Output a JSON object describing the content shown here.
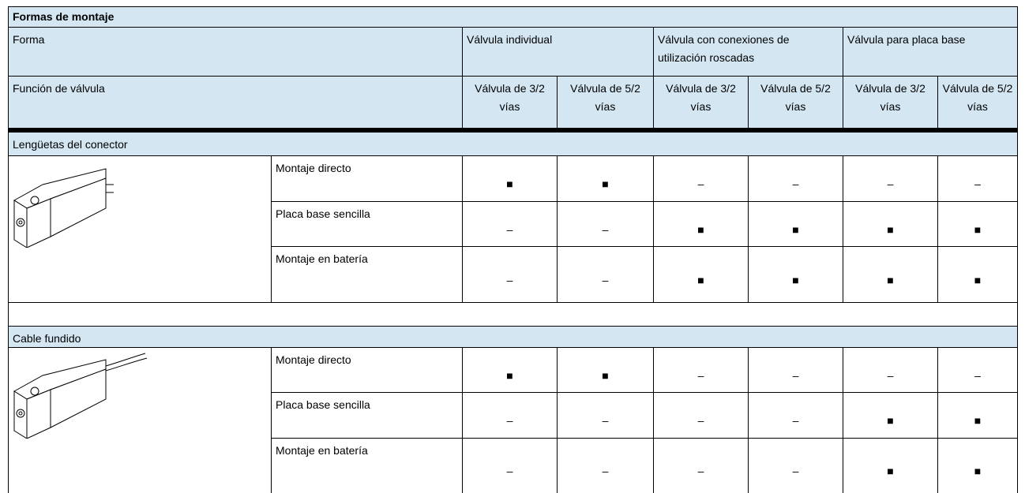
{
  "title": "Formas de montaje",
  "header": {
    "forma_label": "Forma",
    "groups": [
      "Válvula individual",
      "Válvula con conexiones de utilización roscadas",
      "Válvula para placa base"
    ],
    "funcion_label": "Función de válvula",
    "functions": [
      "Válvula de 3/2 vías",
      "Válvula de 5/2 vías",
      "Válvula de 3/2 vías",
      "Válvula de 5/2 vías",
      "Válvula de 3/2 vías",
      "Válvula de 5/2 vías"
    ]
  },
  "sections": [
    {
      "title": "Lengüetas del conector",
      "rows": [
        {
          "label": "Montaje directo",
          "cells": [
            "■",
            "■",
            "–",
            "–",
            "–",
            "–"
          ]
        },
        {
          "label": "Placa base sencilla",
          "cells": [
            "–",
            "–",
            "■",
            "■",
            "■",
            "■"
          ]
        },
        {
          "label": "Montaje en batería",
          "cells": [
            "–",
            "–",
            "■",
            "■",
            "■",
            "■"
          ]
        }
      ]
    },
    {
      "title": "Cable fundido",
      "rows": [
        {
          "label": "Montaje directo",
          "cells": [
            "■",
            "■",
            "–",
            "–",
            "–",
            "–"
          ]
        },
        {
          "label": "Placa base sencilla",
          "cells": [
            "–",
            "–",
            "–",
            "–",
            "■",
            "■"
          ]
        },
        {
          "label": "Montaje en batería",
          "cells": [
            "–",
            "–",
            "–",
            "–",
            "■",
            "■"
          ]
        }
      ]
    }
  ]
}
